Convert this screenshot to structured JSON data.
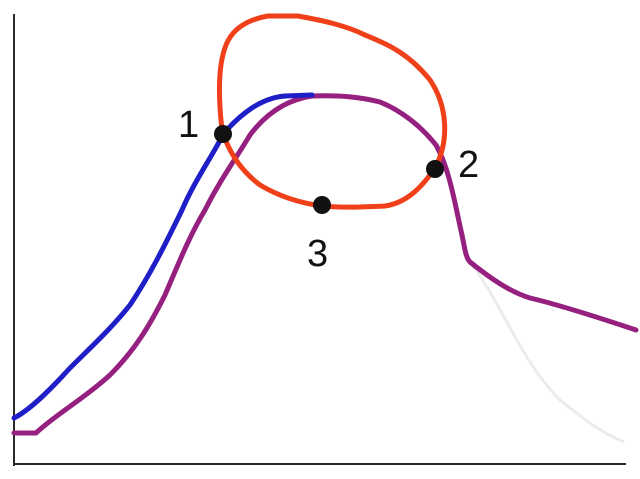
{
  "colors": {
    "axis": "#2a2a2a",
    "blue_curve": "#1f1fc8",
    "purple_curve": "#95207f",
    "orange_loop": "#f0401a",
    "faint_tail": "#ececec",
    "marker": "#111111"
  },
  "points": [
    {
      "label": "1"
    },
    {
      "label": "2"
    },
    {
      "label": "3"
    }
  ]
}
